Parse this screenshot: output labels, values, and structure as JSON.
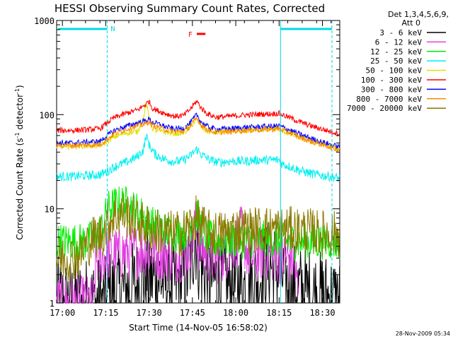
{
  "chart_data": {
    "type": "line",
    "title": "HESSI Observing Summary Count Rates, Corrected",
    "xlabel": "Start Time (14-Nov-05 16:58:02)",
    "ylabel_main": "Corrected Count Rate (s",
    "ylabel_sup1": "-1",
    "ylabel_mid": " detector",
    "ylabel_sup2": "-1",
    "ylabel_end": ")",
    "x_ticks": [
      "17:00",
      "17:15",
      "17:30",
      "17:45",
      "18:00",
      "18:15",
      "18:30"
    ],
    "x_tick_minutes": [
      2,
      17,
      32,
      47,
      62,
      77,
      92
    ],
    "xlim_minutes": [
      0,
      98
    ],
    "y_scale": "log",
    "ylim": [
      1,
      1000
    ],
    "y_ticks": [
      "1",
      "10",
      "100",
      "1000"
    ],
    "y_tick_values": [
      1,
      10,
      100,
      1000
    ],
    "legend_header_line1": "Det 1,3,4,5,6,9,",
    "legend_header_line2": "Att 0",
    "night_bars": [
      {
        "start": 0.5,
        "end": 17.5
      },
      {
        "start": 77.5,
        "end": 95.3
      }
    ],
    "night_label": "N",
    "flare_label": "F",
    "flare_interval": [
      48.5,
      51.5
    ],
    "dashed_lines": [
      17.5,
      95.3
    ],
    "solid_line": 77.5,
    "timestamp": "28-Nov-2009 05:34",
    "series": [
      {
        "name": "3 - 6 keV",
        "color": "#000000",
        "pts": [
          [
            0,
            1
          ],
          [
            17.5,
            1
          ],
          [
            18,
            1.2
          ],
          [
            22,
            1.3
          ],
          [
            27,
            1.5
          ],
          [
            30,
            1.9
          ],
          [
            35,
            1.8
          ],
          [
            40,
            1.6
          ],
          [
            45,
            1.9
          ],
          [
            47,
            3.5
          ],
          [
            48,
            5.5
          ],
          [
            49,
            3.2
          ],
          [
            51,
            2.1
          ],
          [
            55,
            1.7
          ],
          [
            60,
            1.5
          ],
          [
            65,
            1.5
          ],
          [
            70,
            1.8
          ],
          [
            72,
            2.3
          ],
          [
            74,
            2.6
          ],
          [
            77,
            2.2
          ],
          [
            80,
            1.5
          ],
          [
            85,
            1.3
          ],
          [
            90,
            1.2
          ],
          [
            95,
            1.1
          ],
          [
            98,
            1
          ]
        ],
        "noise": 0.5
      },
      {
        "name": "6 - 12 keV",
        "color": "#e040e0",
        "pts": [
          [
            0,
            1
          ],
          [
            13,
            1
          ],
          [
            13.5,
            2.8
          ],
          [
            17,
            3.2
          ],
          [
            22,
            3.4
          ],
          [
            27,
            3.5
          ],
          [
            31,
            3.7
          ],
          [
            35,
            3.4
          ],
          [
            40,
            3.2
          ],
          [
            45,
            3.4
          ],
          [
            47,
            5
          ],
          [
            48,
            6.5
          ],
          [
            49,
            4.3
          ],
          [
            52,
            3.3
          ],
          [
            55,
            3
          ],
          [
            58,
            3.3
          ],
          [
            62,
            4.5
          ],
          [
            64,
            5.5
          ],
          [
            66,
            3.5
          ],
          [
            68,
            3
          ],
          [
            72,
            3.5
          ],
          [
            75,
            3.2
          ],
          [
            78,
            3
          ],
          [
            82,
            3
          ],
          [
            84,
            1
          ]
        ],
        "noise": 0.3
      },
      {
        "name": "12 - 25 keV",
        "color": "#00ee00",
        "pts": [
          [
            0,
            4.5
          ],
          [
            5,
            4.5
          ],
          [
            10,
            4.5
          ],
          [
            14,
            5
          ],
          [
            16,
            6.5
          ],
          [
            17.5,
            10
          ],
          [
            20,
            11
          ],
          [
            23,
            11.5
          ],
          [
            26,
            10.5
          ],
          [
            29,
            9
          ],
          [
            32,
            7
          ],
          [
            35,
            6.5
          ],
          [
            40,
            5.5
          ],
          [
            44,
            5.5
          ],
          [
            47,
            7.5
          ],
          [
            48.5,
            9
          ],
          [
            50,
            6.5
          ],
          [
            52,
            5
          ],
          [
            55,
            4.5
          ],
          [
            60,
            4.7
          ],
          [
            65,
            4.6
          ],
          [
            70,
            4.8
          ],
          [
            75,
            4.7
          ],
          [
            80,
            4.5
          ],
          [
            85,
            4.5
          ],
          [
            90,
            4.5
          ],
          [
            95,
            4.5
          ],
          [
            98,
            4.4
          ]
        ],
        "noise": 0.2
      },
      {
        "name": "25 - 50 keV",
        "color": "#00f0f0",
        "pts": [
          [
            0,
            22
          ],
          [
            5,
            22
          ],
          [
            10,
            22.5
          ],
          [
            15,
            23
          ],
          [
            17.5,
            25
          ],
          [
            20,
            28
          ],
          [
            24,
            31
          ],
          [
            28,
            36
          ],
          [
            30,
            42
          ],
          [
            31,
            60
          ],
          [
            32,
            48
          ],
          [
            34,
            38
          ],
          [
            37,
            34
          ],
          [
            40,
            32
          ],
          [
            43,
            32
          ],
          [
            46,
            36
          ],
          [
            48.5,
            43
          ],
          [
            50,
            38
          ],
          [
            53,
            33
          ],
          [
            56,
            31
          ],
          [
            60,
            32
          ],
          [
            65,
            32
          ],
          [
            70,
            33
          ],
          [
            74,
            33
          ],
          [
            77,
            33
          ],
          [
            78,
            30
          ],
          [
            81,
            28
          ],
          [
            85,
            25
          ],
          [
            90,
            23
          ],
          [
            95,
            22
          ],
          [
            98,
            21
          ]
        ],
        "noise": 0.05
      },
      {
        "name": "50 - 100 keV",
        "color": "#e0e000",
        "pts": [
          [
            0,
            46
          ],
          [
            5,
            46
          ],
          [
            10,
            46.5
          ],
          [
            15,
            47
          ],
          [
            17.5,
            52
          ],
          [
            20,
            58
          ],
          [
            24,
            64
          ],
          [
            28,
            66
          ],
          [
            30,
            90
          ],
          [
            31,
            130
          ],
          [
            32,
            95
          ],
          [
            33,
            72
          ],
          [
            35,
            67
          ],
          [
            38,
            65
          ],
          [
            41,
            63
          ],
          [
            44,
            64
          ],
          [
            46,
            72
          ],
          [
            48.5,
            90
          ],
          [
            50,
            75
          ],
          [
            52,
            66
          ],
          [
            55,
            64
          ],
          [
            60,
            66
          ],
          [
            65,
            67
          ],
          [
            70,
            70
          ],
          [
            74,
            70
          ],
          [
            77,
            70
          ],
          [
            78,
            67
          ],
          [
            81,
            62
          ],
          [
            84,
            57
          ],
          [
            88,
            52
          ],
          [
            92,
            48
          ],
          [
            95,
            45
          ],
          [
            98,
            43
          ]
        ],
        "noise": 0.03
      },
      {
        "name": "100 - 300 keV",
        "color": "#ff0000",
        "pts": [
          [
            0,
            68
          ],
          [
            5,
            68
          ],
          [
            10,
            69
          ],
          [
            15,
            71
          ],
          [
            17.5,
            82
          ],
          [
            20,
            93
          ],
          [
            24,
            103
          ],
          [
            28,
            112
          ],
          [
            31,
            130
          ],
          [
            32,
            140
          ],
          [
            33,
            118
          ],
          [
            35,
            110
          ],
          [
            38,
            102
          ],
          [
            41,
            96
          ],
          [
            44,
            98
          ],
          [
            46,
            112
          ],
          [
            48.5,
            140
          ],
          [
            50,
            118
          ],
          [
            52,
            103
          ],
          [
            55,
            94
          ],
          [
            60,
            96
          ],
          [
            65,
            99
          ],
          [
            70,
            101
          ],
          [
            74,
            102
          ],
          [
            77,
            103
          ],
          [
            78,
            100
          ],
          [
            81,
            92
          ],
          [
            84,
            84
          ],
          [
            88,
            76
          ],
          [
            92,
            70
          ],
          [
            95,
            66
          ],
          [
            98,
            63
          ]
        ],
        "noise": 0.03
      },
      {
        "name": "300 - 800 keV",
        "color": "#0000ff",
        "pts": [
          [
            0,
            50
          ],
          [
            5,
            50
          ],
          [
            10,
            51
          ],
          [
            15,
            52
          ],
          [
            17.5,
            60
          ],
          [
            20,
            68
          ],
          [
            24,
            75
          ],
          [
            28,
            82
          ],
          [
            31,
            86
          ],
          [
            32,
            90
          ],
          [
            33,
            83
          ],
          [
            35,
            80
          ],
          [
            38,
            74
          ],
          [
            41,
            70
          ],
          [
            44,
            72
          ],
          [
            46,
            80
          ],
          [
            48.5,
            100
          ],
          [
            50,
            84
          ],
          [
            52,
            75
          ],
          [
            55,
            70
          ],
          [
            60,
            71
          ],
          [
            65,
            73
          ],
          [
            70,
            74
          ],
          [
            74,
            75
          ],
          [
            77,
            76
          ],
          [
            78,
            74
          ],
          [
            81,
            68
          ],
          [
            84,
            62
          ],
          [
            88,
            56
          ],
          [
            92,
            51
          ],
          [
            95,
            48
          ],
          [
            98,
            45
          ]
        ],
        "noise": 0.03
      },
      {
        "name": "800 - 7000 keV",
        "color": "#ff8800",
        "pts": [
          [
            0,
            47
          ],
          [
            5,
            47
          ],
          [
            10,
            47.5
          ],
          [
            15,
            48
          ],
          [
            17.5,
            55
          ],
          [
            20,
            63
          ],
          [
            24,
            70
          ],
          [
            28,
            76
          ],
          [
            31,
            80
          ],
          [
            32,
            85
          ],
          [
            33,
            77
          ],
          [
            35,
            74
          ],
          [
            38,
            69
          ],
          [
            41,
            66
          ],
          [
            44,
            67
          ],
          [
            46,
            74
          ],
          [
            48.5,
            92
          ],
          [
            50,
            78
          ],
          [
            52,
            70
          ],
          [
            55,
            65
          ],
          [
            60,
            66
          ],
          [
            65,
            68
          ],
          [
            70,
            69
          ],
          [
            74,
            70
          ],
          [
            77,
            71
          ],
          [
            78,
            69
          ],
          [
            81,
            64
          ],
          [
            84,
            58
          ],
          [
            88,
            52
          ],
          [
            92,
            48
          ],
          [
            95,
            45
          ],
          [
            98,
            42
          ]
        ],
        "noise": 0.03
      },
      {
        "name": "7000 - 20000 keV",
        "color": "#8b7a00",
        "pts": [
          [
            0,
            3
          ],
          [
            4,
            3
          ],
          [
            8,
            3.2
          ],
          [
            10,
            4
          ],
          [
            13,
            5
          ],
          [
            16,
            5.5
          ],
          [
            17.5,
            7
          ],
          [
            20,
            8.5
          ],
          [
            23,
            9
          ],
          [
            26,
            8
          ],
          [
            29,
            7
          ],
          [
            33,
            6
          ],
          [
            38,
            5.5
          ],
          [
            43,
            5.5
          ],
          [
            46,
            6.5
          ],
          [
            48.5,
            8
          ],
          [
            50,
            6.5
          ],
          [
            53,
            5.5
          ],
          [
            57,
            5.5
          ],
          [
            62,
            6
          ],
          [
            67,
            6
          ],
          [
            72,
            6.2
          ],
          [
            77,
            6
          ],
          [
            82,
            6
          ],
          [
            87,
            5.8
          ],
          [
            92,
            5.5
          ],
          [
            96,
            5.5
          ],
          [
            98,
            5.3
          ]
        ],
        "noise": 0.25
      }
    ]
  }
}
